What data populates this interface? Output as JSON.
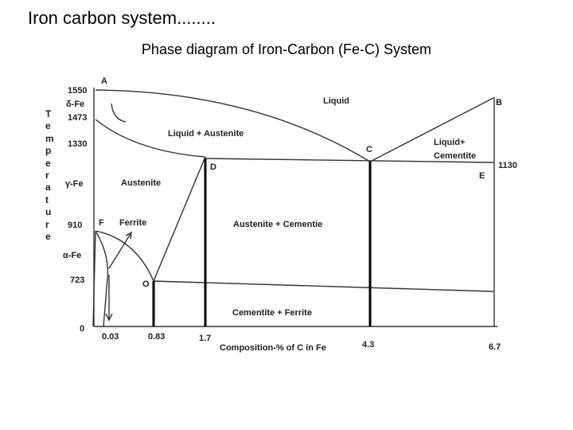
{
  "header": {
    "title": "Iron carbon system........",
    "subtitle": "Phase diagram of Iron-Carbon (Fe-C) System"
  },
  "axis": {
    "y_label": "Temperature",
    "x_label": "Composition-% of C in Fe"
  },
  "temperatures": [
    "1550",
    "δ-Fe",
    "1473",
    "1330",
    "γ-Fe",
    "910",
    "α-Fe",
    "723",
    "0",
    "1130"
  ],
  "compositions": [
    "0.03",
    "0.83",
    "1.7",
    "4.3",
    "6.7"
  ],
  "points": [
    "A",
    "B",
    "C",
    "D",
    "E",
    "F",
    "O"
  ],
  "regions": [
    "Liquid",
    "Liquid + Austenite",
    "Austenite",
    "Ferrite",
    "Austenite + Cementie",
    "Liquid+",
    "Cementite",
    "Cementite + Ferrite"
  ]
}
